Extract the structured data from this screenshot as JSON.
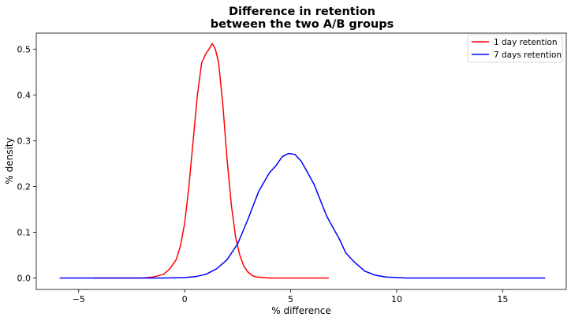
{
  "chart_data": {
    "type": "line",
    "title_line1": "Difference in retention",
    "title_line2": "between the two A/B groups",
    "xlabel": "% difference",
    "ylabel": "% density",
    "xlim": [
      -7,
      18
    ],
    "ylim": [
      -0.025,
      0.535
    ],
    "xticks": [
      -5,
      0,
      5,
      10,
      15
    ],
    "xtick_labels": [
      "−5",
      "0",
      "5",
      "10",
      "15"
    ],
    "yticks": [
      0.0,
      0.1,
      0.2,
      0.3,
      0.4,
      0.5
    ],
    "ytick_labels": [
      "0.0",
      "0.1",
      "0.2",
      "0.3",
      "0.4",
      "0.5"
    ],
    "grid": false,
    "legend_position": "top-right",
    "series": [
      {
        "name": "1 day retention",
        "color": "#ff0000",
        "x": [
          -4.3,
          -2.0,
          -1.5,
          -1.0,
          -0.7,
          -0.4,
          -0.2,
          0.0,
          0.2,
          0.4,
          0.6,
          0.8,
          1.0,
          1.15,
          1.3,
          1.45,
          1.6,
          1.8,
          2.0,
          2.2,
          2.4,
          2.6,
          2.8,
          3.0,
          3.2,
          3.4,
          3.7,
          4.0,
          4.5,
          5.0,
          6.8
        ],
        "y": [
          0.0,
          0.0,
          0.002,
          0.008,
          0.02,
          0.04,
          0.07,
          0.12,
          0.2,
          0.3,
          0.4,
          0.47,
          0.49,
          0.5,
          0.512,
          0.5,
          0.47,
          0.38,
          0.26,
          0.16,
          0.09,
          0.05,
          0.025,
          0.012,
          0.005,
          0.002,
          0.001,
          0.0,
          0.0,
          0.0,
          0.0
        ]
      },
      {
        "name": "7 days retention",
        "color": "#0000ff",
        "x": [
          -5.9,
          -1.0,
          0.0,
          0.5,
          1.0,
          1.5,
          2.0,
          2.5,
          3.0,
          3.5,
          4.0,
          4.3,
          4.6,
          4.9,
          5.2,
          5.5,
          5.8,
          6.1,
          6.4,
          6.7,
          7.0,
          7.3,
          7.6,
          8.0,
          8.5,
          9.0,
          9.5,
          10.0,
          10.5,
          12.0,
          17.0
        ],
        "y": [
          0.0,
          0.0,
          0.001,
          0.003,
          0.008,
          0.02,
          0.04,
          0.075,
          0.13,
          0.19,
          0.23,
          0.245,
          0.265,
          0.272,
          0.27,
          0.255,
          0.23,
          0.205,
          0.17,
          0.135,
          0.11,
          0.085,
          0.055,
          0.035,
          0.015,
          0.006,
          0.002,
          0.001,
          0.0,
          0.0,
          0.0
        ]
      }
    ]
  }
}
